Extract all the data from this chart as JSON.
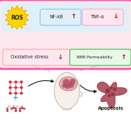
{
  "bg_color": "#ffffff",
  "outer_box_color": "#ff4da6",
  "outer_box_facecolor": "#fde8f0",
  "inner_top_facecolor": "#dff0f8",
  "ros_star_outer": "#ffd700",
  "ros_star_inner": "#ffaa00",
  "ros_text": "ROS",
  "nfkb_text": "NF-kB",
  "tnfa_text": "TNF-α",
  "oxstress_text": "Oxidative stress",
  "bbb_text": "BBB Permeability",
  "apoptosis_text": "Apoptosis",
  "nfkb_box_edge": "#88ccee",
  "nfkb_box_face": "#dff0f8",
  "tnfa_box_edge": "#ffaacc",
  "tnfa_box_face": "#fde8f0",
  "ox_box_edge": "#ffaaaa",
  "ox_box_face": "#fde8f0",
  "bbb_box_edge": "#55bb55",
  "bbb_box_face": "#e8f8e8",
  "up_arrow_color": "#cc0000",
  "down_arrow_color": "#cc0000",
  "dashed_color": "#aaaaaa",
  "arrow_color": "#222222",
  "mol_node_color": "#cc3344",
  "mol_line_color": "#cc3344",
  "cbd_node_color": "#cc3344",
  "cbd_line_color": "#888888",
  "plus_color": "#4499dd",
  "head_face": "#f5f0ec",
  "head_edge": "#ccbbaa",
  "brain_face": "#e8a0aa",
  "brain_edge": "#c08090",
  "tumor_face": "#b05060",
  "apop_face": "#aa4455",
  "apop_edge": "#882233",
  "label_fs": 4.8,
  "small_fs": 4.2,
  "ros_fs": 5.5
}
